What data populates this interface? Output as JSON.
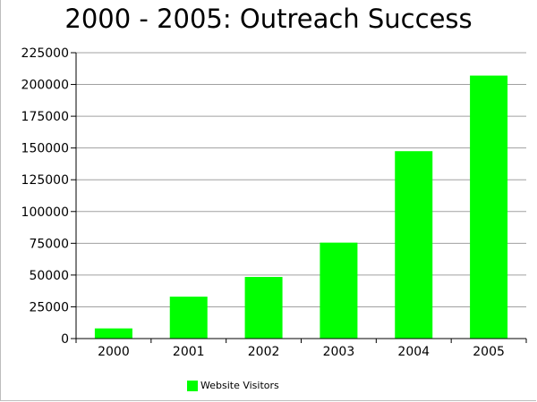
{
  "chart_data": {
    "type": "bar",
    "title": "2000 - 2005: Outreach Success",
    "xlabel": "",
    "ylabel": "",
    "categories": [
      "2000",
      "2001",
      "2002",
      "2003",
      "2004",
      "2005"
    ],
    "series": [
      {
        "name": "Website Visitors",
        "values": [
          8000,
          33000,
          48500,
          75500,
          147500,
          207000
        ],
        "color": "#00ff00"
      }
    ],
    "ylim": [
      0,
      225000
    ],
    "yticks": [
      0,
      25000,
      50000,
      75000,
      100000,
      125000,
      150000,
      175000,
      200000,
      225000
    ],
    "ytick_labels": [
      "0",
      "25000",
      "50000",
      "75000",
      "100000",
      "125000",
      "150000",
      "175000",
      "200000",
      "225000"
    ],
    "grid": true,
    "legend_position": "bottom-left"
  }
}
